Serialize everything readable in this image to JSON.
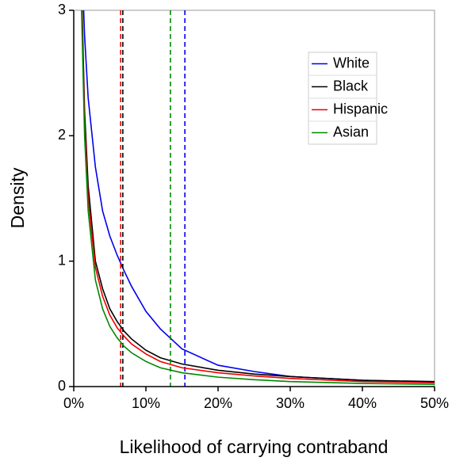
{
  "chart_data": {
    "type": "line",
    "xlabel": "Likelihood of carrying contraband",
    "ylabel": "Density",
    "x": [
      0.01,
      0.015,
      0.02,
      0.03,
      0.04,
      0.05,
      0.06,
      0.07,
      0.08,
      0.1,
      0.12,
      0.15,
      0.2,
      0.25,
      0.3,
      0.4,
      0.5
    ],
    "series": [
      {
        "name": "White",
        "color": "#0000ee",
        "threshold": 0.154,
        "values": [
          3.6,
          2.8,
          2.3,
          1.75,
          1.4,
          1.2,
          1.05,
          0.92,
          0.8,
          0.6,
          0.46,
          0.3,
          0.17,
          0.12,
          0.08,
          0.05,
          0.035
        ]
      },
      {
        "name": "Black",
        "color": "#000000",
        "threshold": 0.068,
        "values": [
          3.4,
          2.2,
          1.6,
          1.0,
          0.78,
          0.62,
          0.52,
          0.44,
          0.38,
          0.29,
          0.23,
          0.18,
          0.13,
          0.1,
          0.08,
          0.05,
          0.04
        ]
      },
      {
        "name": "Hispanic",
        "color": "#ee0000",
        "threshold": 0.065,
        "values": [
          3.3,
          2.1,
          1.5,
          0.95,
          0.72,
          0.57,
          0.47,
          0.4,
          0.34,
          0.26,
          0.2,
          0.15,
          0.11,
          0.085,
          0.065,
          0.04,
          0.03
        ]
      },
      {
        "name": "Asian",
        "color": "#008800",
        "threshold": 0.134,
        "values": [
          3.2,
          2.0,
          1.4,
          0.85,
          0.62,
          0.48,
          0.39,
          0.32,
          0.27,
          0.2,
          0.15,
          0.11,
          0.075,
          0.055,
          0.04,
          0.025,
          0.018
        ]
      }
    ],
    "xlim": [
      0,
      0.5
    ],
    "xticks": [
      {
        "value": 0,
        "label": "0%"
      },
      {
        "value": 0.1,
        "label": "10%"
      },
      {
        "value": 0.2,
        "label": "20%"
      },
      {
        "value": 0.3,
        "label": "30%"
      },
      {
        "value": 0.4,
        "label": "40%"
      },
      {
        "value": 0.5,
        "label": "50%"
      }
    ],
    "ylim": [
      0,
      3
    ],
    "yticks": [
      0,
      1,
      2,
      3
    ],
    "legend": "top-right"
  }
}
